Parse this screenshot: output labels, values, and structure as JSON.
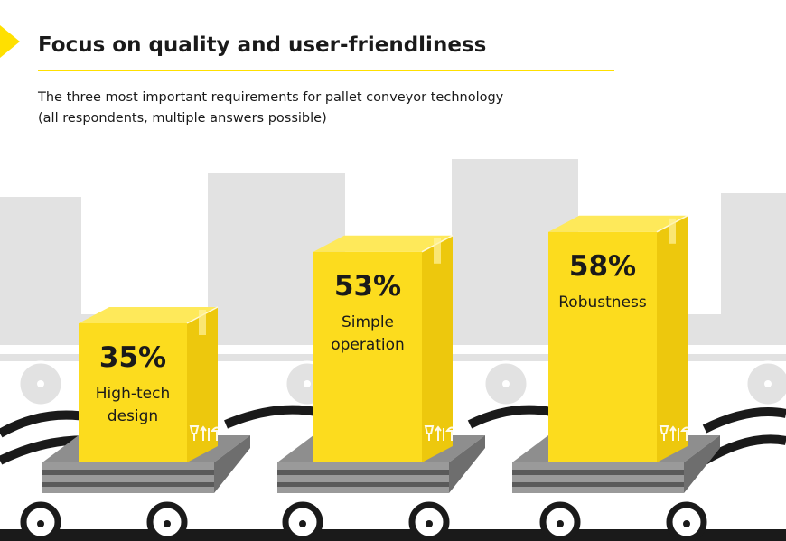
{
  "colors": {
    "accent": "#FFE000",
    "box_front": "#FCDC1E",
    "box_side": "#EDC80D",
    "box_top": "#FEE95A",
    "background_machines": "#E2E2E2",
    "pallet": "#8E8E8E",
    "text": "#1A1A1A"
  },
  "header": {
    "title": "Focus on quality and user-friendliness",
    "subtitle_line1": "The three most important requirements for pallet conveyor technology",
    "subtitle_line2": "(all respondents, multiple answers possible)"
  },
  "chart_data": {
    "type": "bar",
    "categories": [
      "High-tech design",
      "Simple operation",
      "Robustness"
    ],
    "category_lines": [
      [
        "High-tech",
        "design"
      ],
      [
        "Simple",
        "operation"
      ],
      [
        "Robustness"
      ]
    ],
    "values": [
      35,
      53,
      58
    ],
    "value_labels": [
      "35%",
      "53%",
      "58%"
    ],
    "unit": "%",
    "title": "Focus on quality and user-friendliness",
    "xlabel": "",
    "ylabel": "",
    "ylim": [
      0,
      100
    ],
    "grid": false,
    "legend": "none"
  },
  "icons": [
    "fragile-glass-icon",
    "this-side-up-icon",
    "keep-dry-umbrella-icon"
  ]
}
